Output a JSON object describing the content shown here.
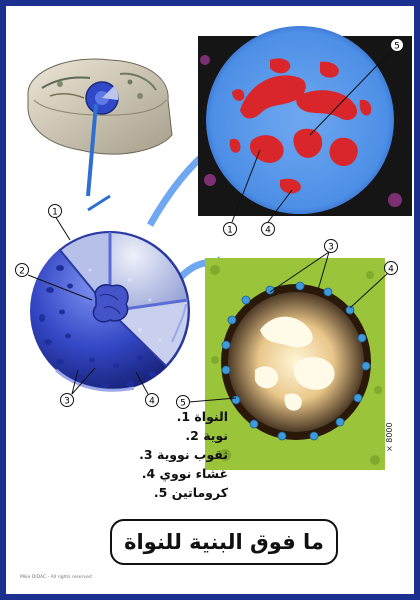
{
  "title": "ما فوق البنية للنواة",
  "legend": [
    {
      "num": "1.",
      "label": "النواة"
    },
    {
      "num": "2.",
      "label": "نوية"
    },
    {
      "num": "3.",
      "label": "ثقوب نووية"
    },
    {
      "num": "4.",
      "label": "غشاء نووي"
    },
    {
      "num": "5.",
      "label": "كروماتين"
    }
  ],
  "callouts": {
    "c1": "1",
    "c2": "2",
    "c3": "3",
    "c4": "4",
    "c5": "5",
    "c6": "1",
    "c7": "4",
    "c8": "3",
    "c9": "4",
    "c10": "5"
  },
  "magnification": "× 8000",
  "copyright": "Mike DIDAC - All rights reserved",
  "colors": {
    "border": "#1b2f8f",
    "nucleus_blue": "#3a4fc8",
    "chromatin_red": "#d8262b",
    "em_green": "#9ac43a",
    "arrow_blue": "#2f6fd0"
  }
}
